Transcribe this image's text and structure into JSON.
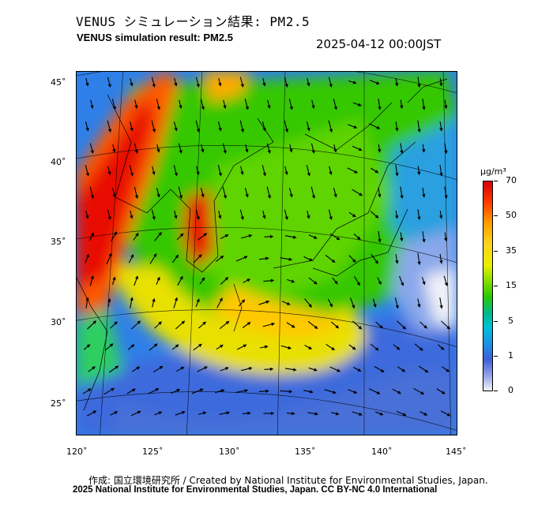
{
  "header": {
    "title_jp": "VENUS シミュレーション結果: PM2.5",
    "title_en": "VENUS simulation result: PM2.5",
    "timestamp": "2025-04-12 00:00JST"
  },
  "map": {
    "lat_labels": [
      "45˚",
      "40˚",
      "35˚",
      "30˚",
      "25˚"
    ],
    "lon_labels": [
      "120˚",
      "125˚",
      "130˚",
      "135˚",
      "140˚",
      "145˚"
    ]
  },
  "colorbar": {
    "unit": "μg/m³",
    "ticks": [
      "70",
      "50",
      "35",
      "15",
      "5",
      "1",
      "0"
    ]
  },
  "footer": {
    "credit_jp": "作成: 国立環境研究所 / Created by National Institute for Environmental Studies, Japan.",
    "copyright": "2025 National Institute for Environmental Studies, Japan. CC BY-NC 4.0 International"
  },
  "colors": {
    "ocean_low": "#3c60d8",
    "land_mid": "#2cc800",
    "high": "#ff3a00",
    "max": "#d4000a"
  }
}
